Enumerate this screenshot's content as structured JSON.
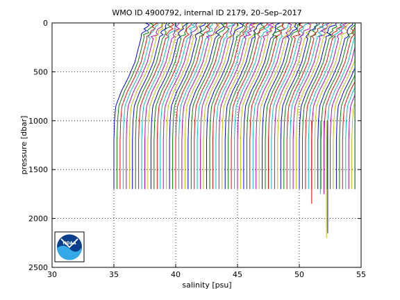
{
  "chart_data": {
    "type": "line",
    "title": "WMO ID 4900792, internal ID 2179, 20–Sep–2017",
    "xlabel": "salinity [psu]",
    "ylabel": "pressure [dbar]",
    "xlim": [
      30,
      55
    ],
    "ylim": [
      0,
      2500
    ],
    "y_reversed": true,
    "x_ticks": [
      30,
      35,
      40,
      45,
      50,
      55
    ],
    "y_ticks": [
      0,
      500,
      1000,
      1500,
      2000,
      2500
    ],
    "grid": true,
    "legend": "none",
    "series_count": 80,
    "profile_start_offset_psu": 35.0,
    "profile_spacing_psu": 0.25,
    "profile_depth_dbar": 1700,
    "colors": [
      "#0000ff",
      "#008000",
      "#ff0000",
      "#00bfbf",
      "#bf00bf",
      "#bfbf00"
    ],
    "deep_profiles": [
      {
        "salinity": 51.0,
        "depth": 1850
      },
      {
        "salinity": 51.7,
        "depth": 1750
      },
      {
        "salinity": 52.0,
        "depth": 1750
      },
      {
        "salinity": 52.2,
        "depth": 2200
      },
      {
        "salinity": 52.3,
        "depth": 2150
      }
    ]
  },
  "logo": {
    "text": "NOAA",
    "name": "noaa-logo"
  }
}
